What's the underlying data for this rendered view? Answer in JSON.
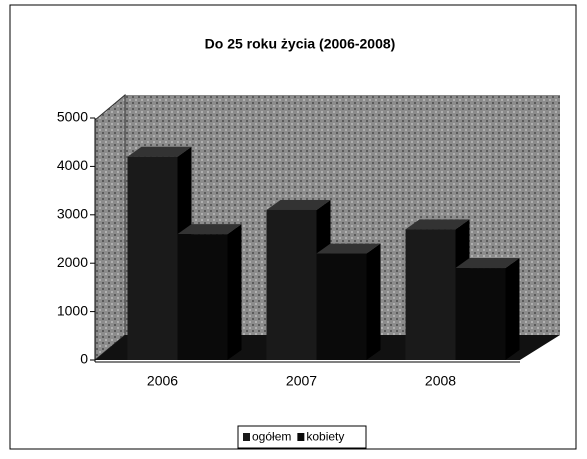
{
  "chart_data": {
    "type": "bar3d",
    "title": "Do 25 roku życia (2006-2008)",
    "categories": [
      "2006",
      "2007",
      "2008"
    ],
    "series": [
      {
        "name": "ogółem",
        "color": "#1a1a1a",
        "values": [
          4200,
          3100,
          2700
        ]
      },
      {
        "name": "kobiety",
        "color": "#0a0a0a",
        "values": [
          2600,
          2200,
          1900
        ]
      }
    ],
    "ylim": [
      0,
      5000
    ],
    "yticks": [
      0,
      1000,
      2000,
      3000,
      4000,
      5000
    ],
    "legend": "bottom"
  }
}
